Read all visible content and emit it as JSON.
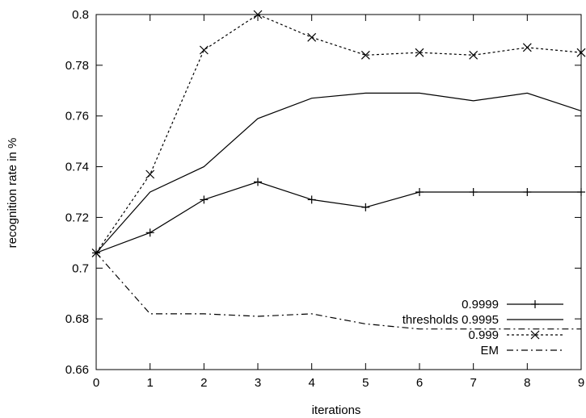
{
  "chart_data": {
    "type": "line",
    "title": "",
    "xlabel": "iterations",
    "ylabel": "recognition rate in %",
    "xlim": [
      0,
      9
    ],
    "ylim": [
      0.66,
      0.8
    ],
    "x_ticks": [
      0,
      1,
      2,
      3,
      4,
      5,
      6,
      7,
      8,
      9
    ],
    "x_tick_labels": [
      "0",
      "1",
      "2",
      "3",
      "4",
      "5",
      "6",
      "7",
      "8",
      "9"
    ],
    "y_ticks": [
      0.66,
      0.68,
      0.7,
      0.72,
      0.74,
      0.76,
      0.78,
      0.8
    ],
    "y_tick_labels": [
      "0.66",
      "0.68",
      "0.7",
      "0.72",
      "0.74",
      "0.76",
      "0.78",
      "0.8"
    ],
    "grid": false,
    "legend_position": "bottom-right",
    "legend_prefix": "thresholds",
    "x": [
      0,
      1,
      2,
      3,
      4,
      5,
      6,
      7,
      8,
      9
    ],
    "series": [
      {
        "name": "0.9999",
        "values": [
          0.706,
          0.714,
          0.727,
          0.734,
          0.727,
          0.724,
          0.73,
          0.73,
          0.73,
          0.73
        ],
        "dash": "solid",
        "marker": "plus",
        "color": "#000000"
      },
      {
        "name": "0.9995",
        "values": [
          0.706,
          0.73,
          0.74,
          0.759,
          0.767,
          0.769,
          0.769,
          0.766,
          0.769,
          0.762
        ],
        "dash": "solid",
        "marker": "none",
        "color": "#000000"
      },
      {
        "name": "0.999",
        "values": [
          0.706,
          0.737,
          0.786,
          0.8,
          0.791,
          0.784,
          0.785,
          0.784,
          0.787,
          0.785
        ],
        "dash": "dotted",
        "marker": "cross",
        "color": "#000000"
      },
      {
        "name": "EM",
        "values": [
          0.706,
          0.682,
          0.682,
          0.681,
          0.682,
          0.678,
          0.676,
          0.676,
          0.676,
          0.676
        ],
        "dash": "dashdot",
        "marker": "none",
        "color": "#000000"
      }
    ]
  }
}
